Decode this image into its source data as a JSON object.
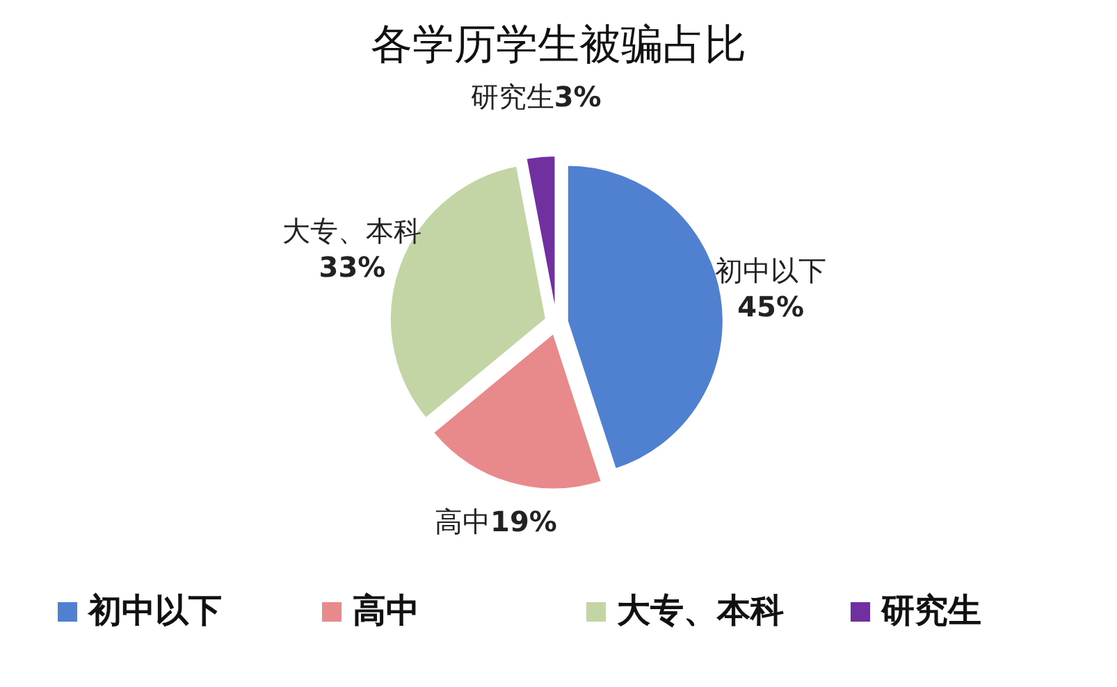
{
  "chart_data": {
    "type": "pie",
    "title": "各学历学生被骗占比",
    "categories": [
      "初中以下",
      "高中",
      "大专、本科",
      "研究生"
    ],
    "values": [
      45,
      19,
      33,
      3
    ],
    "value_labels": [
      "45%",
      "19%",
      "33%",
      "3%"
    ],
    "colors": [
      "#4f81d0",
      "#e88a8c",
      "#c3d5a4",
      "#7030a0"
    ],
    "legend": "bottom"
  }
}
